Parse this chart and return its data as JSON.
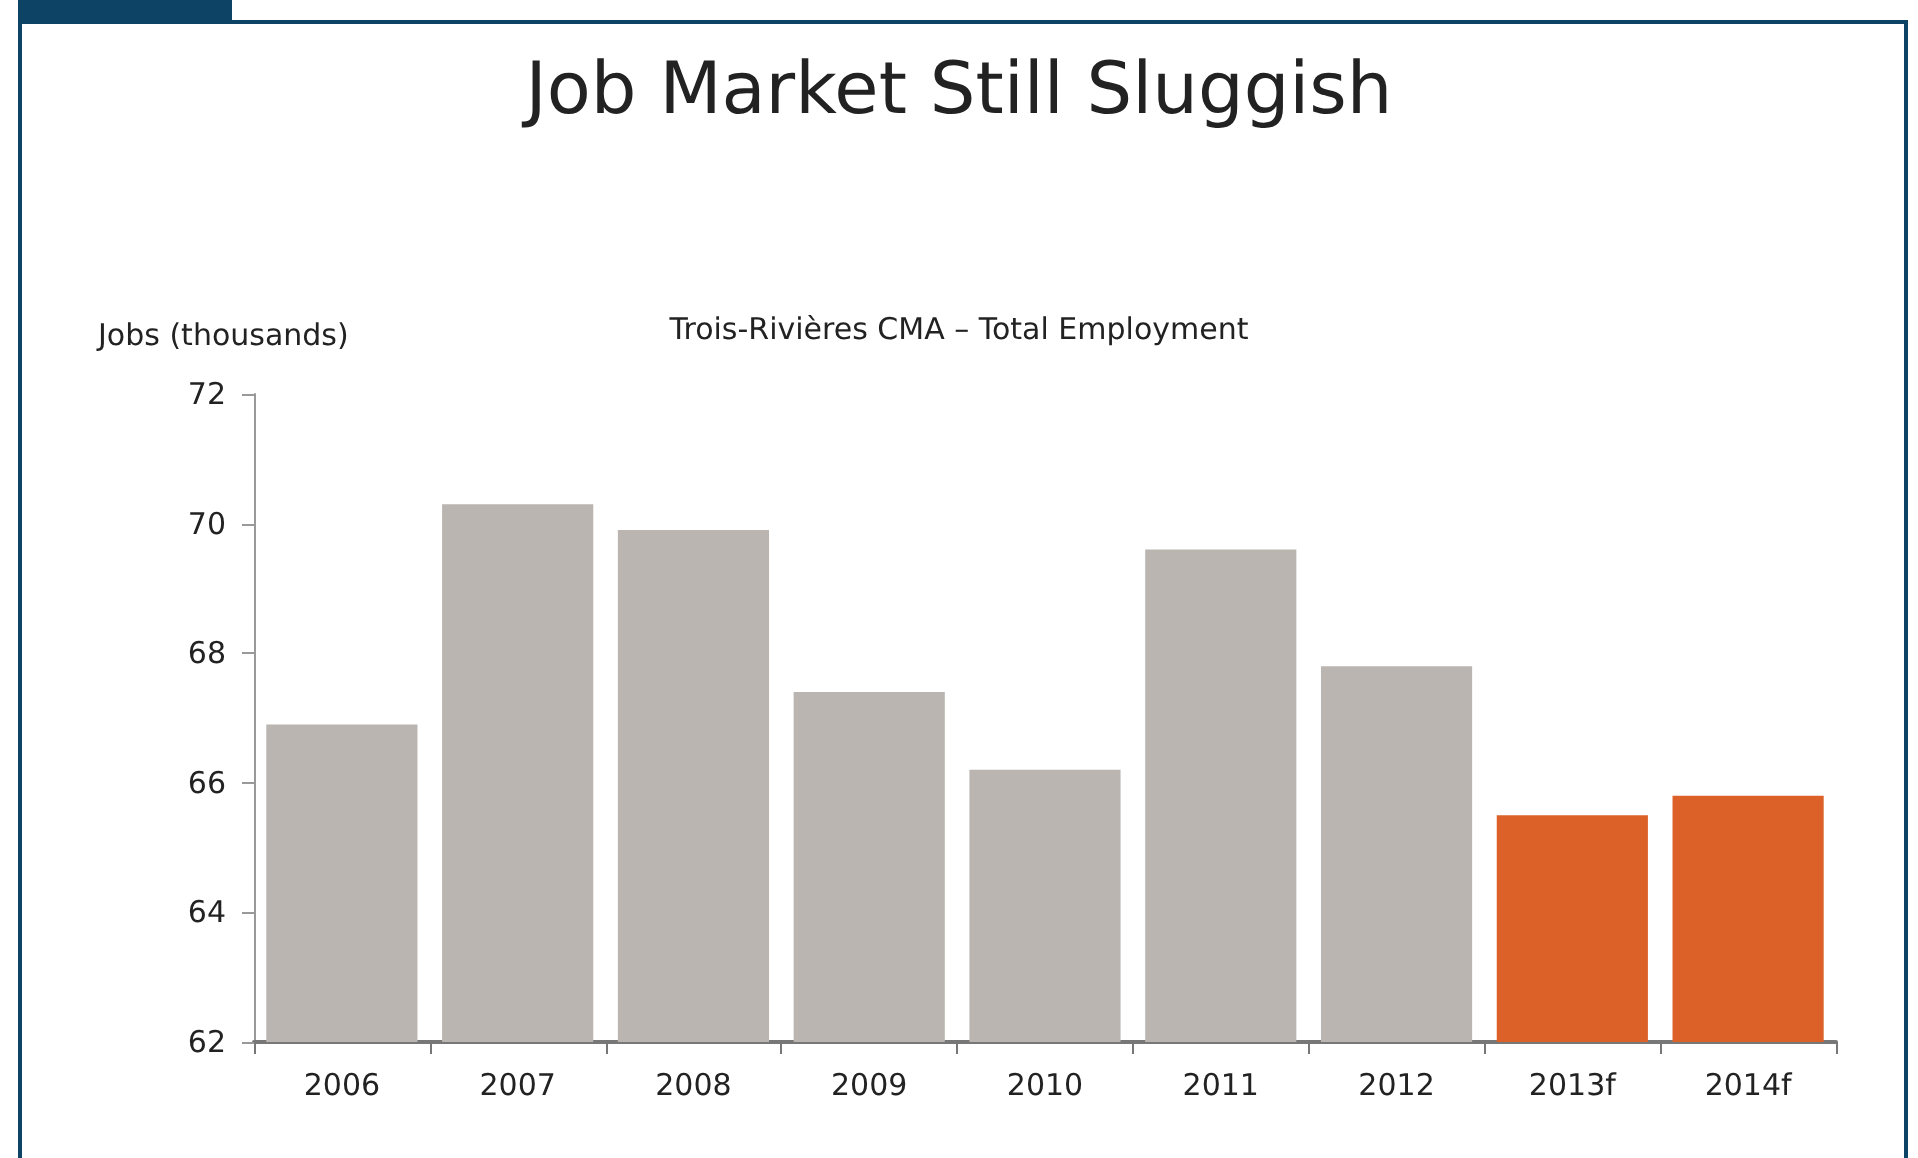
{
  "chart_data": {
    "type": "bar",
    "title": "Job Market Still Sluggish",
    "subtitle": "Trois-Rivières CMA – Total Employment",
    "ylabel": "Jobs (thousands)",
    "categories": [
      "2006",
      "2007",
      "2008",
      "2009",
      "2010",
      "2011",
      "2012",
      "2013f",
      "2014f"
    ],
    "values": [
      66.9,
      70.3,
      69.9,
      67.4,
      66.2,
      69.6,
      67.8,
      65.5,
      65.8
    ],
    "colors": [
      "#bab5b0",
      "#bab5b0",
      "#bab5b0",
      "#bab5b0",
      "#bab5b0",
      "#bab5b0",
      "#bab5b0",
      "#db6128",
      "#db6128"
    ],
    "ylim": [
      62,
      72
    ],
    "yticks": [
      62,
      64,
      66,
      68,
      70,
      72
    ],
    "grid": false
  }
}
